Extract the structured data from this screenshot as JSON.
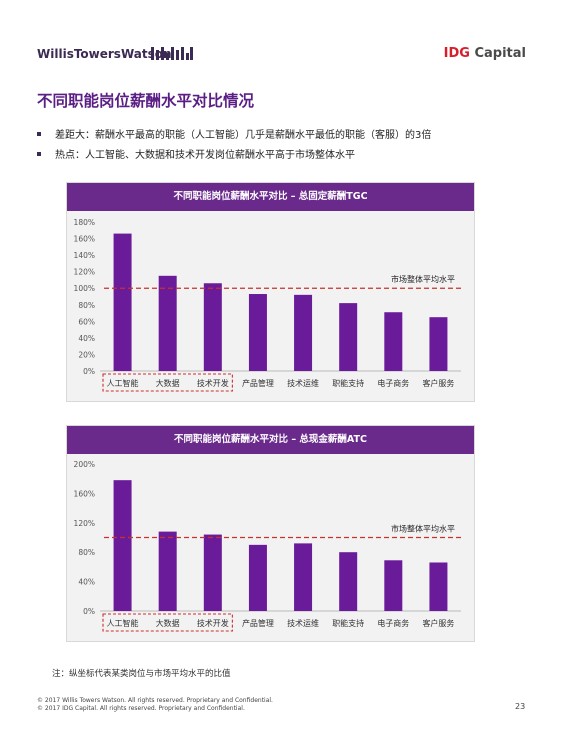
{
  "header": {
    "wtw_logo": "WillisTowersWatson",
    "idg_logo_prefix": "IDG",
    "idg_logo_suffix": " Capital"
  },
  "page_title": "不同职能岗位薪酬水平对比情况",
  "bullets": [
    "差距大：薪酬水平最高的职能（人工智能）几乎是薪酬水平最低的职能（客服）的3倍",
    "热点：人工智能、大数据和技术开发岗位薪酬水平高于市场整体水平"
  ],
  "colors": {
    "bar": "#6a1b9a",
    "header": "#6a2a8c",
    "reference_line": "#c9302c",
    "title": "#5a1e85"
  },
  "chart_data": [
    {
      "type": "bar",
      "title": "不同职能岗位薪酬水平对比 – 总固定薪酬TGC",
      "categories": [
        "人工智能",
        "大数据",
        "技术开发",
        "产品管理",
        "技术运维",
        "职能支持",
        "电子商务",
        "客户服务"
      ],
      "values": [
        166,
        115,
        106,
        93,
        92,
        82,
        71,
        65
      ],
      "ylim": [
        0,
        180
      ],
      "yticks": [
        0,
        20,
        40,
        60,
        80,
        100,
        120,
        140,
        160,
        180
      ],
      "ytick_labels": [
        "0%",
        "20%",
        "40%",
        "60%",
        "80%",
        "100%",
        "120%",
        "140%",
        "160%",
        "180%"
      ],
      "reference_line": {
        "value": 100,
        "label": "市场整体平均水平"
      },
      "highlighted_categories": [
        "人工智能",
        "大数据",
        "技术开发"
      ],
      "grid": false
    },
    {
      "type": "bar",
      "title": "不同职能岗位薪酬水平对比 – 总现金薪酬ATC",
      "categories": [
        "人工智能",
        "大数据",
        "技术开发",
        "产品管理",
        "技术运维",
        "职能支持",
        "电子商务",
        "客户服务"
      ],
      "values": [
        178,
        108,
        104,
        90,
        92,
        80,
        69,
        66
      ],
      "ylim": [
        0,
        200
      ],
      "yticks": [
        0,
        40,
        80,
        120,
        160,
        200
      ],
      "ytick_labels": [
        "0%",
        "40%",
        "80%",
        "120%",
        "160%",
        "200%"
      ],
      "reference_line": {
        "value": 100,
        "label": "市场整体平均水平"
      },
      "highlighted_categories": [
        "人工智能",
        "大数据",
        "技术开发"
      ],
      "grid": false
    }
  ],
  "note": "注：纵坐标代表某类岗位与市场平均水平的比值",
  "footer": {
    "copyright_1": "© 2017 Willis Towers Watson. All rights reserved. Proprietary and Confidential.",
    "copyright_2": "© 2017 IDG Capital. All rights reserved. Proprietary and Confidential.",
    "page_number": "23"
  }
}
